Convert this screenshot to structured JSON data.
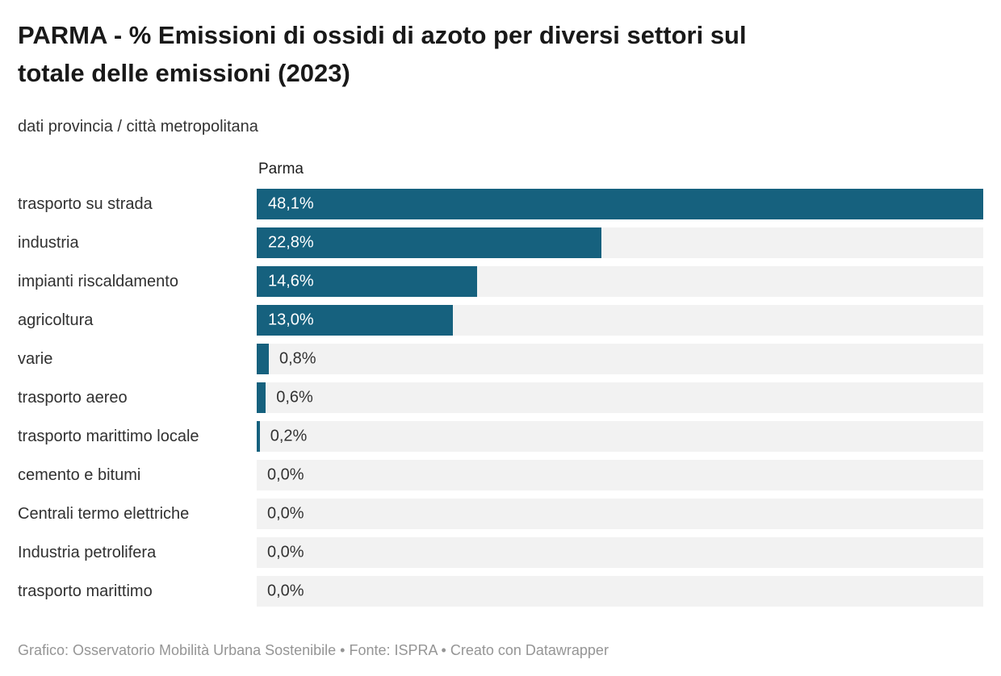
{
  "header": {
    "title_line1": "PARMA - % Emissioni di ossidi di azoto per diversi settori sul",
    "title_line2": "totale delle emissioni (2023)",
    "title_full": "PARMA - % Emissioni di ossidi di azoto per diversi settori sul totale delle emissioni (2023)",
    "subtitle": "dati provincia / città metropolitana"
  },
  "colors": {
    "bar": "#16617E",
    "track": "#F2F2F2",
    "title": "#191919",
    "footer_text": "#959595"
  },
  "chart_data": {
    "type": "bar",
    "orientation": "horizontal",
    "title": "PARMA - % Emissioni di ossidi di azoto per diversi settori sul totale delle emissioni (2023)",
    "subtitle": "dati provincia / città metropolitana",
    "column_header": "Parma",
    "xlabel": "",
    "ylabel": "",
    "xlim": [
      0,
      48.1
    ],
    "grid": false,
    "legend_position": "none",
    "categories": [
      "trasporto su strada",
      "industria",
      "impianti riscaldamento",
      "agricoltura",
      "varie",
      "trasporto aereo",
      "trasporto marittimo locale",
      "cemento e bitumi",
      "Centrali termo elettriche",
      "Industria petrolifera",
      "trasporto marittimo"
    ],
    "values": [
      48.1,
      22.8,
      14.6,
      13.0,
      0.8,
      0.6,
      0.2,
      0.0,
      0.0,
      0.0,
      0.0
    ],
    "rows": [
      {
        "label": "trasporto su strada",
        "value": 48.1,
        "value_label": "48,1%",
        "label_position": "inside"
      },
      {
        "label": "industria",
        "value": 22.8,
        "value_label": "22,8%",
        "label_position": "inside"
      },
      {
        "label": "impianti riscaldamento",
        "value": 14.6,
        "value_label": "14,6%",
        "label_position": "inside"
      },
      {
        "label": "agricoltura",
        "value": 13.0,
        "value_label": "13,0%",
        "label_position": "inside"
      },
      {
        "label": "varie",
        "value": 0.8,
        "value_label": "0,8%",
        "label_position": "outside"
      },
      {
        "label": "trasporto aereo",
        "value": 0.6,
        "value_label": "0,6%",
        "label_position": "outside"
      },
      {
        "label": "trasporto marittimo locale",
        "value": 0.2,
        "value_label": "0,2%",
        "label_position": "outside"
      },
      {
        "label": "cemento e bitumi",
        "value": 0.0,
        "value_label": "0,0%",
        "label_position": "outside"
      },
      {
        "label": "Centrali termo elettriche",
        "value": 0.0,
        "value_label": "0,0%",
        "label_position": "outside"
      },
      {
        "label": "Industria petrolifera",
        "value": 0.0,
        "value_label": "0,0%",
        "label_position": "outside"
      },
      {
        "label": "trasporto marittimo",
        "value": 0.0,
        "value_label": "0,0%",
        "label_position": "outside"
      }
    ]
  },
  "footer": {
    "text": "Grafico: Osservatorio Mobilità Urbana Sostenibile • Fonte: ISPRA • Creato con Datawrapper"
  }
}
